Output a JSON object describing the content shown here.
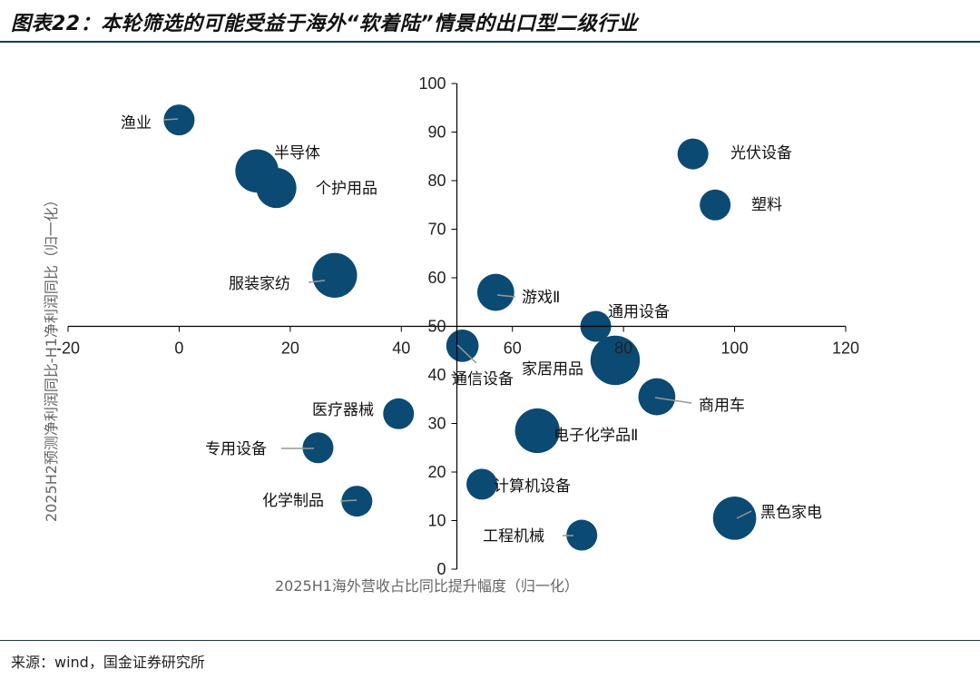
{
  "figure": {
    "title": "图表22：本轮筛选的可能受益于海外“软着陆”情景的出口型二级行业",
    "source": "来源：wind，国金证券研究所"
  },
  "chart_data": {
    "type": "scatter",
    "xlabel": "2025H1海外营收占比同比提升幅度（归一化）",
    "ylabel": "2025H2预测净利润同比-H1净利润同比（归一化）",
    "xlim": [
      -20,
      120
    ],
    "ylim": [
      0,
      100
    ],
    "x_ticks": [
      -20,
      0,
      20,
      40,
      60,
      80,
      100,
      120
    ],
    "y_ticks": [
      0,
      10,
      20,
      30,
      40,
      50,
      60,
      70,
      80,
      90,
      100
    ],
    "axis_crossing": {
      "x": 50,
      "y": 50
    },
    "grid": false,
    "point_color": "#0b4a73",
    "points": [
      {
        "label": "渔业",
        "x": 0,
        "y": 92.5,
        "size": 1.0
      },
      {
        "label": "半导体",
        "x": 14,
        "y": 82,
        "size": 1.4
      },
      {
        "label": "个护用品",
        "x": 17.5,
        "y": 78.5,
        "size": 1.3
      },
      {
        "label": "服装家纺",
        "x": 28,
        "y": 60.5,
        "size": 1.45
      },
      {
        "label": "光伏设备",
        "x": 92.5,
        "y": 85.5,
        "size": 1.0
      },
      {
        "label": "塑料",
        "x": 96.5,
        "y": 75,
        "size": 1.0
      },
      {
        "label": "游戏Ⅱ",
        "x": 57,
        "y": 57,
        "size": 1.2
      },
      {
        "label": "通用设备",
        "x": 75,
        "y": 50,
        "size": 1.0
      },
      {
        "label": "通信设备",
        "x": 51,
        "y": 46,
        "size": 1.05
      },
      {
        "label": "家居用品",
        "x": 78.5,
        "y": 43,
        "size": 1.6
      },
      {
        "label": "商用车",
        "x": 86,
        "y": 35.5,
        "size": 1.2
      },
      {
        "label": "医疗器械",
        "x": 39.5,
        "y": 32,
        "size": 1.0
      },
      {
        "label": "电子化学品Ⅱ",
        "x": 64.5,
        "y": 28.5,
        "size": 1.45
      },
      {
        "label": "专用设备",
        "x": 25,
        "y": 25,
        "size": 1.0
      },
      {
        "label": "计算机设备",
        "x": 54.5,
        "y": 17.5,
        "size": 1.0
      },
      {
        "label": "化学制品",
        "x": 32,
        "y": 14,
        "size": 1.0
      },
      {
        "label": "黑色家电",
        "x": 100,
        "y": 10.5,
        "size": 1.4
      },
      {
        "label": "工程机械",
        "x": 72.5,
        "y": 7,
        "size": 1.0
      }
    ]
  }
}
